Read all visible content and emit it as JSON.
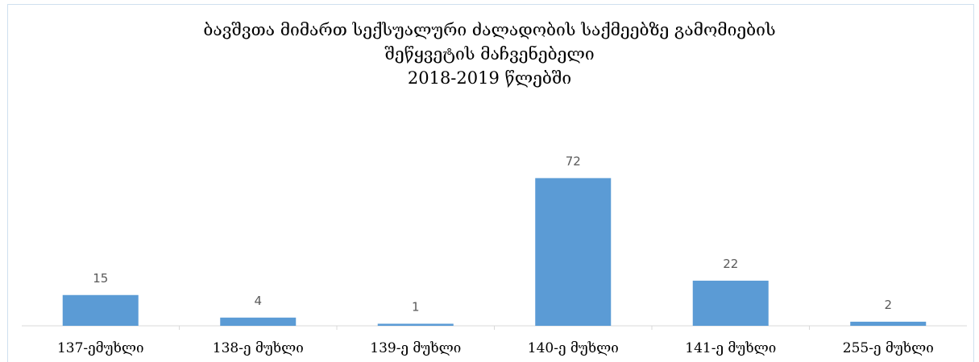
{
  "chart_data": {
    "type": "bar",
    "title_lines": [
      "ბავშვთა მიმართ სექსუალური ძალადობის საქმეებზე გამომიების",
      "შეწყვეტის მაჩვენებელი",
      "2018-2019 წლებში"
    ],
    "categories": [
      "137-ემუხლი",
      "138-ე მუხლი",
      "139-ე მუხლი",
      "140-ე მუხლი",
      "141-ე მუხლი",
      "255-ე მუხლი"
    ],
    "values": [
      15,
      4,
      1,
      72,
      22,
      2
    ],
    "data_labels": [
      "15",
      "4",
      "1",
      "72",
      "22",
      "2"
    ],
    "ylim": [
      0,
      80
    ],
    "grid": false,
    "legend": "none",
    "bar_color": "#5b9bd5",
    "axis_color": "#d9d9d9",
    "label_color": "#595959"
  }
}
